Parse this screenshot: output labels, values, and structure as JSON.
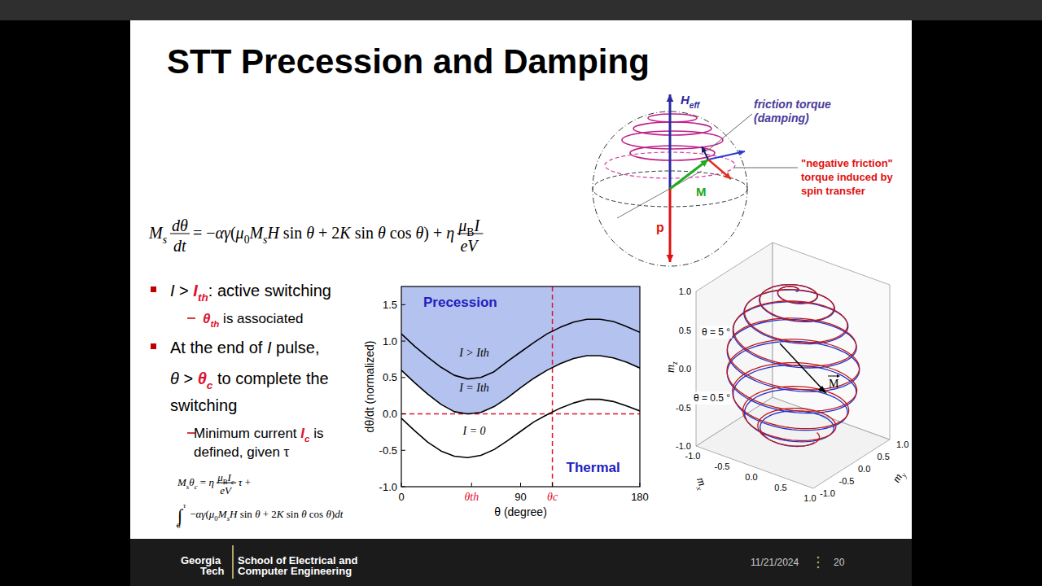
{
  "slide": {
    "title": "STT Precession and Damping",
    "equation": [
      {
        "segs": [
          {
            "text": "M",
            "italic": true
          },
          {
            "text": "s",
            "italic": true,
            "sub": true
          }
        ]
      },
      {
        "num": [
          {
            "text": "dθ",
            "italic": true
          }
        ],
        "den": [
          {
            "text": "dt",
            "italic": true
          }
        ]
      },
      {
        "segs": [
          {
            "text": "= −"
          },
          {
            "text": "αγ",
            "italic": true
          },
          {
            "text": "("
          },
          {
            "text": "μ",
            "italic": true
          },
          {
            "text": "0",
            "sub": true
          },
          {
            "text": "M",
            "italic": true
          },
          {
            "text": "s",
            "italic": true,
            "sub": true
          },
          {
            "text": "H",
            "italic": true
          },
          {
            "text": " sin "
          },
          {
            "text": "θ",
            "italic": true
          },
          {
            "text": " + 2"
          },
          {
            "text": "K",
            "italic": true
          },
          {
            "text": " sin "
          },
          {
            "text": "θ",
            "italic": true
          },
          {
            "text": " cos "
          },
          {
            "text": "θ",
            "italic": true
          },
          {
            "text": ") + "
          },
          {
            "text": "η",
            "italic": true
          }
        ]
      },
      {
        "num": [
          {
            "text": "μ",
            "italic": true
          },
          {
            "text": "B",
            "sub": true
          },
          {
            "text": "I",
            "italic": true
          }
        ],
        "den": [
          {
            "text": "eV",
            "italic": true
          }
        ]
      }
    ],
    "bullets": [
      {
        "lines": [
          [
            {
              "text": "I",
              "italic": true
            },
            {
              "text": " > "
            },
            {
              "text": "I",
              "italic": true,
              "bold": true,
              "color": "#e0102f"
            },
            {
              "text": "th",
              "italic": true,
              "bold": true,
              "color": "#e0102f",
              "sub": true
            },
            {
              "text": ": active switching"
            }
          ]
        ],
        "sub": [
          {
            "lines": [
              [
                {
                  "text": "θ",
                  "italic": true,
                  "bold": true,
                  "color": "#e0102f"
                },
                {
                  "text": "th",
                  "italic": true,
                  "bold": true,
                  "color": "#e0102f",
                  "sub": true
                },
                {
                  "text": " is associated"
                }
              ]
            ]
          }
        ]
      },
      {
        "lines": [
          [
            {
              "text": "At the end of "
            },
            {
              "text": "I",
              "italic": true
            },
            {
              "text": " pulse,"
            }
          ],
          [
            {
              "text": "θ",
              "italic": true
            },
            {
              "text": " > "
            },
            {
              "text": "θ",
              "italic": true,
              "bold": true,
              "color": "#e0102f"
            },
            {
              "text": "c",
              "italic": true,
              "bold": true,
              "color": "#e0102f",
              "sub": true
            },
            {
              "text": " to complete the"
            }
          ],
          [
            {
              "text": "switching"
            }
          ]
        ],
        "sub": [
          {
            "lines": [
              [
                {
                  "text": "Minimum current "
                },
                {
                  "text": "I",
                  "italic": true,
                  "bold": true,
                  "color": "#e0102f"
                },
                {
                  "text": "c",
                  "italic": true,
                  "bold": true,
                  "color": "#e0102f",
                  "sub": true
                },
                {
                  "text": " is"
                }
              ],
              [
                {
                  "text": "defined, given τ"
                }
              ]
            ]
          }
        ]
      }
    ],
    "sub_equations": [
      [
        {
          "segs": [
            {
              "text": "M",
              "italic": true
            },
            {
              "text": "s",
              "italic": true,
              "sub": true
            },
            {
              "text": "θ",
              "italic": true
            },
            {
              "text": "c",
              "italic": true,
              "sub": true
            },
            {
              "text": " = "
            },
            {
              "text": "η",
              "italic": true
            }
          ]
        },
        {
          "num": [
            {
              "text": "μ",
              "italic": true
            },
            {
              "text": "B",
              "sub": true
            },
            {
              "text": "I",
              "italic": true
            },
            {
              "text": "c",
              "italic": true,
              "sub": true
            }
          ],
          "den": [
            {
              "text": "eV",
              "italic": true
            }
          ]
        },
        {
          "segs": [
            {
              "text": "τ",
              "italic": true
            },
            {
              "text": " +"
            }
          ]
        }
      ],
      [
        {
          "integral": "∫",
          "upper": "τ",
          "lower": "0"
        },
        {
          "segs": [
            {
              "text": "−"
            },
            {
              "text": "αγ",
              "italic": true
            },
            {
              "text": "("
            },
            {
              "text": "μ",
              "italic": true
            },
            {
              "text": "0",
              "sub": true
            },
            {
              "text": "M",
              "italic": true
            },
            {
              "text": "s",
              "italic": true,
              "sub": true
            },
            {
              "text": "H",
              "italic": true
            },
            {
              "text": " sin "
            },
            {
              "text": "θ",
              "italic": true
            },
            {
              "text": " + 2"
            },
            {
              "text": "K",
              "italic": true
            },
            {
              "text": " sin "
            },
            {
              "text": "θ",
              "italic": true
            },
            {
              "text": " cos "
            },
            {
              "text": "θ",
              "italic": true
            },
            {
              "text": ")"
            },
            {
              "text": "dt",
              "italic": true
            }
          ]
        }
      ]
    ]
  },
  "chart_data": {
    "type": "line",
    "x": [
      0,
      10,
      20,
      30,
      40,
      50,
      60,
      70,
      80,
      90,
      100,
      110,
      120,
      130,
      140,
      150,
      160,
      170,
      180
    ],
    "series": [
      {
        "name": "I > Ith",
        "color": "#000000",
        "values": [
          1.1,
          0.93,
          0.78,
          0.64,
          0.53,
          0.48,
          0.5,
          0.58,
          0.72,
          0.85,
          0.98,
          1.1,
          1.19,
          1.26,
          1.3,
          1.3,
          1.27,
          1.2,
          1.12
        ]
      },
      {
        "name": "I = Ith",
        "color": "#000000",
        "values": [
          0.6,
          0.43,
          0.27,
          0.13,
          0.03,
          0.0,
          0.02,
          0.1,
          0.22,
          0.36,
          0.49,
          0.6,
          0.69,
          0.76,
          0.8,
          0.8,
          0.77,
          0.71,
          0.63
        ]
      },
      {
        "name": "I = 0",
        "color": "#000000",
        "values": [
          -0.06,
          -0.23,
          -0.39,
          -0.51,
          -0.58,
          -0.6,
          -0.57,
          -0.49,
          -0.37,
          -0.24,
          -0.11,
          -0.01,
          0.08,
          0.15,
          0.2,
          0.2,
          0.17,
          0.11,
          0.04
        ]
      }
    ],
    "xlim": [
      0,
      180
    ],
    "ylim": [
      -1,
      1.75
    ],
    "xticks": [
      0,
      {
        "value": 53,
        "label": "θth"
      },
      90,
      {
        "value": 114,
        "label": "θc"
      },
      180
    ],
    "yticks": [
      {
        "value": -1,
        "label": "-1.0"
      },
      {
        "value": -0.5,
        "label": "-0.5"
      },
      {
        "value": 0,
        "label": "0.0"
      },
      {
        "value": 0.5,
        "label": "0.5"
      },
      {
        "value": 1,
        "label": "1.0"
      },
      {
        "value": 1.5,
        "label": "1.5"
      }
    ],
    "x_label": "θ (degree)",
    "y_label": "dθ/dt (normalized)",
    "annotations": [
      "Precession",
      "Thermal"
    ],
    "reference_lines": {
      "x": [
        114
      ],
      "y": [
        0
      ]
    },
    "grid": false
  },
  "sphere": {
    "h_label": [
      {
        "text": "H",
        "bold": true,
        "italic": true
      },
      {
        "text": "eff",
        "bold": true,
        "italic": true,
        "sub": true
      }
    ],
    "friction": [
      "friction torque",
      "(damping)"
    ],
    "negative": [
      "\"negative friction\"",
      "torque induced by",
      "spin transfer"
    ],
    "m_label": "M",
    "p_label": "p"
  },
  "trajectory": {
    "z_label": [
      {
        "text": "m",
        "italic": true
      },
      {
        "text": "z",
        "italic": true,
        "sub": true
      }
    ],
    "x_label": [
      {
        "text": "m",
        "italic": true
      },
      {
        "text": "x",
        "italic": true,
        "sub": true
      }
    ],
    "y_label": [
      {
        "text": "m",
        "italic": true
      },
      {
        "text": "y",
        "italic": true,
        "sub": true
      }
    ],
    "z_ticks": [
      {
        "value": -1,
        "label": "-1.0"
      },
      {
        "value": -0.5,
        "label": "-0.5"
      },
      {
        "value": 0,
        "label": "0.0"
      },
      {
        "value": 0.5,
        "label": "0.5"
      },
      {
        "value": 1,
        "label": "1.0"
      }
    ],
    "x_ticks": [
      {
        "value": -1,
        "label": "-1.0"
      },
      {
        "value": -0.5,
        "label": "-0.5"
      },
      {
        "value": 0,
        "label": "0.0"
      },
      {
        "value": 0.5,
        "label": "0.5"
      },
      {
        "value": 1,
        "label": "1.0"
      }
    ],
    "y_ticks": [
      {
        "value": -1,
        "label": "-1.0"
      },
      {
        "value": -0.5,
        "label": "-0.5"
      },
      {
        "value": 0,
        "label": "0.0"
      },
      {
        "value": 0.5,
        "label": "0.5"
      },
      {
        "value": 1,
        "label": "1.0"
      }
    ],
    "labels": [
      "θ = 5 °",
      "θ = 0.5 °"
    ],
    "m_label": "M"
  },
  "footer": {
    "logo": [
      "Georgia",
      "Tech"
    ],
    "school": [
      "School of Electrical and",
      "Computer Engineering"
    ],
    "date": "11/21/2024",
    "page": "20"
  }
}
